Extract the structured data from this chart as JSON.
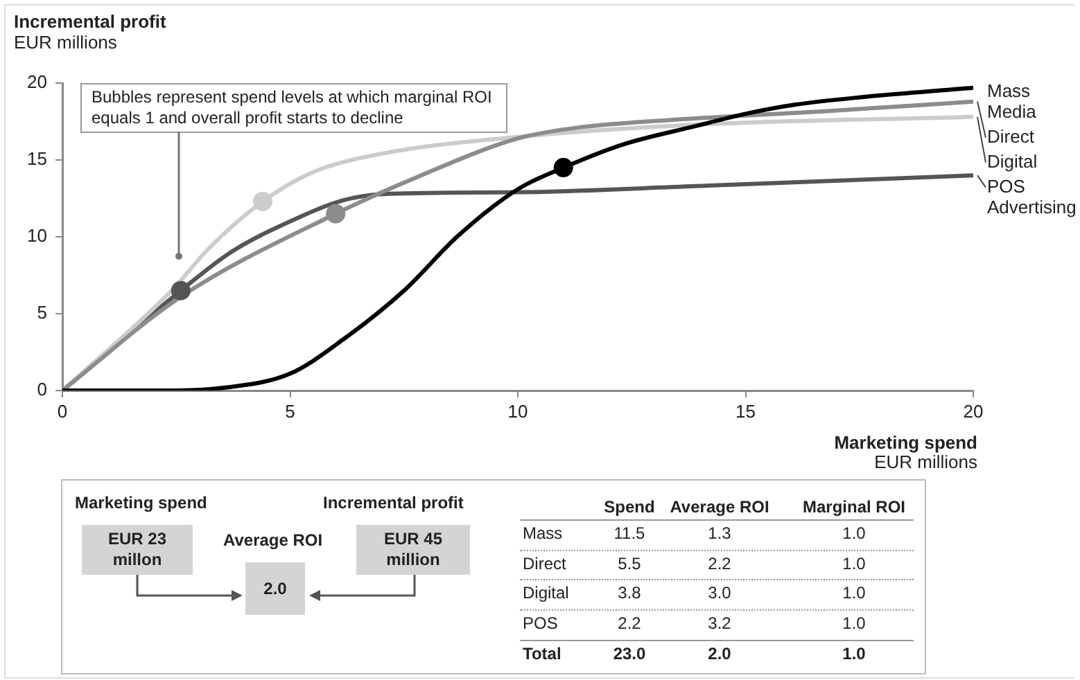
{
  "chart_data": [
    {
      "type": "line",
      "ylabel": "Incremental profit\nEUR millions",
      "xlabel": "Marketing spend\nEUR millions",
      "xlim": [
        0,
        20
      ],
      "xticks": [
        0,
        5,
        10,
        15,
        20
      ],
      "ylim": [
        0,
        20
      ],
      "yticks": [
        0,
        5,
        10,
        15,
        20
      ],
      "grid": false,
      "legend": false,
      "marker": "none",
      "annotations": [
        "Bubbles represent spend levels at which marginal ROI equals 1 and overall profit starts to decline"
      ],
      "series": [
        {
          "name": "Mass Media",
          "color": "#000000",
          "x": [
            0,
            2.4,
            3.6,
            5,
            6.2,
            7.5,
            8.7,
            10,
            11,
            12.3,
            13.9,
            15,
            16.1,
            17.6,
            20
          ],
          "values": [
            0,
            0,
            0.2,
            1.1,
            3.4,
            6.5,
            10.1,
            13.1,
            14.5,
            16,
            17.2,
            18,
            18.6,
            19.1,
            19.7
          ]
        },
        {
          "name": "Direct",
          "color": "#8c8c8c",
          "x": [
            0,
            2.6,
            6,
            7.8,
            10,
            11.3,
            13.9,
            16.9,
            20
          ],
          "values": [
            0,
            6.1,
            11.5,
            13.9,
            16.4,
            17.1,
            17.7,
            18.2,
            18.8
          ]
        },
        {
          "name": "Digital",
          "color": "#cccccc",
          "x": [
            0,
            2.4,
            3.2,
            4.4,
            5.5,
            7,
            10,
            13.9,
            20
          ],
          "values": [
            0,
            6.5,
            9.2,
            12.3,
            14.2,
            15.4,
            16.5,
            17.3,
            17.8
          ]
        },
        {
          "name": "POS Advertising",
          "color": "#555555",
          "x": [
            0,
            2.6,
            3.7,
            5,
            6.2,
            7.2,
            10,
            13.9,
            20
          ],
          "values": [
            0,
            6.5,
            9,
            11,
            12.4,
            12.8,
            12.9,
            13.3,
            14
          ]
        },
        {
          "type": "scatter",
          "marker": "circle",
          "x": [
            11,
            6,
            4.4,
            2.6
          ],
          "values": [
            14.5,
            11.5,
            12.3,
            6.5
          ],
          "colors": [
            "#000000",
            "#8c8c8c",
            "#cccccc",
            "#555555"
          ]
        }
      ]
    },
    {
      "type": "other",
      "annotations": [
        "Marketing spend",
        "EUR 23 millon",
        "Incremental profit",
        "EUR 45 million",
        "Average ROI",
        "2.0"
      ],
      "categories": [
        "Mass",
        "Direct",
        "Digital",
        "POS",
        "Total"
      ],
      "series": [
        {
          "name": "Spend",
          "values": [
            11.5,
            5.5,
            3.8,
            2.2,
            23.0
          ],
          "value_labels": [
            "11.5",
            "5.5",
            "3.8",
            "2.2",
            "23.0"
          ]
        },
        {
          "name": "Average ROI",
          "values": [
            1.3,
            2.2,
            3.0,
            3.2,
            2.0
          ],
          "value_labels": [
            "1.3",
            "2.2",
            "3.0",
            "3.2",
            "2.0"
          ]
        },
        {
          "name": "Marginal ROI",
          "values": [
            1.0,
            1.0,
            1.0,
            1.0,
            1.0
          ],
          "value_labels": [
            "1.0",
            "1.0",
            "1.0",
            "1.0",
            "1.0"
          ]
        }
      ]
    }
  ]
}
